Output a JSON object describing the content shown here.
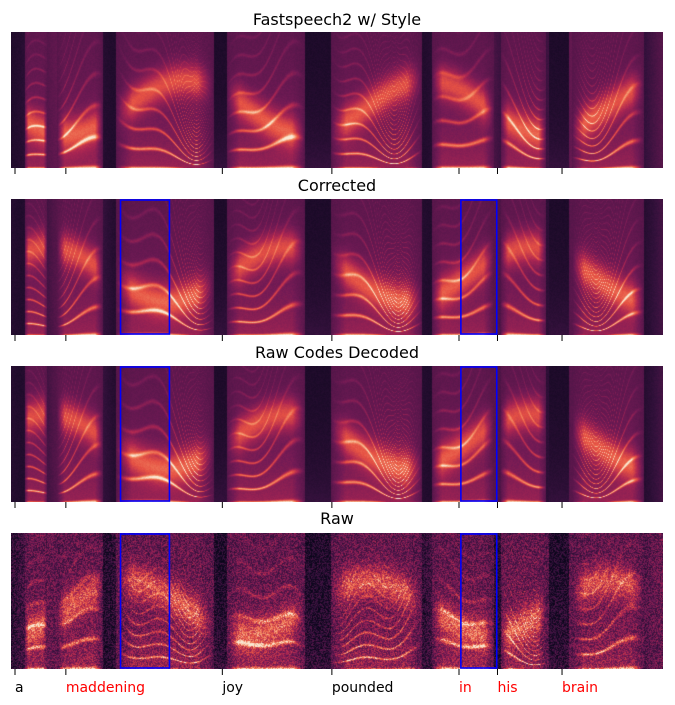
{
  "chart_data": {
    "type": "heatmap",
    "colormap": "rocket",
    "word_highlight_color": "#ff0000",
    "word_plain_color": "#000000",
    "box_color": "#0000ff",
    "x_ticks": [
      0.0,
      0.078,
      0.318,
      0.486,
      0.681,
      0.74,
      0.839
    ],
    "words": [
      {
        "text": "a",
        "highlight": false
      },
      {
        "text": "maddening",
        "highlight": true
      },
      {
        "text": "joy",
        "highlight": false
      },
      {
        "text": "pounded",
        "highlight": false
      },
      {
        "text": "in",
        "highlight": true
      },
      {
        "text": "his",
        "highlight": true
      },
      {
        "text": "brain",
        "highlight": true
      }
    ],
    "panels": [
      {
        "title": "Fastspeech2 w/ Style",
        "style": "smooth",
        "seed": 11,
        "boxes": []
      },
      {
        "title": "Corrected",
        "style": "smooth",
        "seed": 23,
        "boxes": [
          [
            0.168,
            0.243
          ],
          [
            0.69,
            0.745
          ]
        ]
      },
      {
        "title": "Raw Codes Decoded",
        "style": "smooth",
        "seed": 23,
        "boxes": [
          [
            0.168,
            0.243
          ],
          [
            0.69,
            0.745
          ]
        ]
      },
      {
        "title": "Raw",
        "style": "noisy",
        "seed": 37,
        "boxes": [
          [
            0.168,
            0.243
          ],
          [
            0.69,
            0.745
          ]
        ]
      }
    ]
  }
}
